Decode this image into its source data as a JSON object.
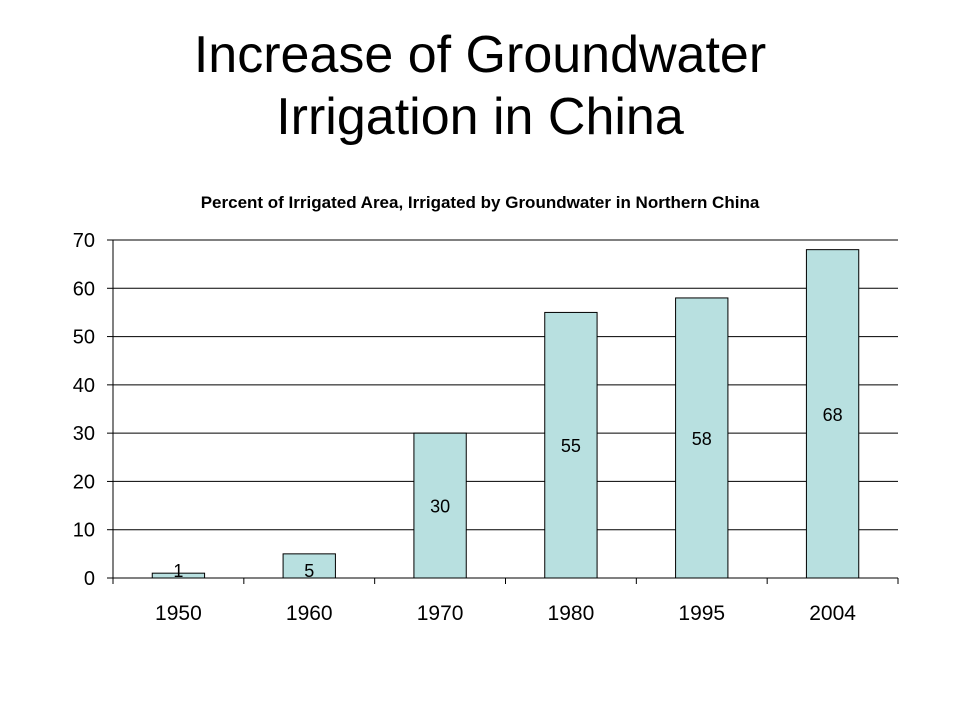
{
  "slide": {
    "title_line1": "Increase of Groundwater",
    "title_line2": "Irrigation in China"
  },
  "chart_data": {
    "type": "bar",
    "title": "Percent of Irrigated Area, Irrigated by Groundwater in Northern China",
    "xlabel": "",
    "ylabel": "",
    "categories": [
      "1950",
      "1960",
      "1970",
      "1980",
      "1995",
      "2004"
    ],
    "values": [
      1,
      5,
      30,
      55,
      58,
      68
    ],
    "data_labels": [
      "1",
      "5",
      "30",
      "55",
      "58",
      "68"
    ],
    "ylim": [
      0,
      70
    ],
    "yticks": [
      0,
      10,
      20,
      30,
      40,
      50,
      60,
      70
    ],
    "grid": true,
    "legend": "none",
    "bar_color": "#b8e0e0",
    "bar_edge_color": "#000000"
  }
}
